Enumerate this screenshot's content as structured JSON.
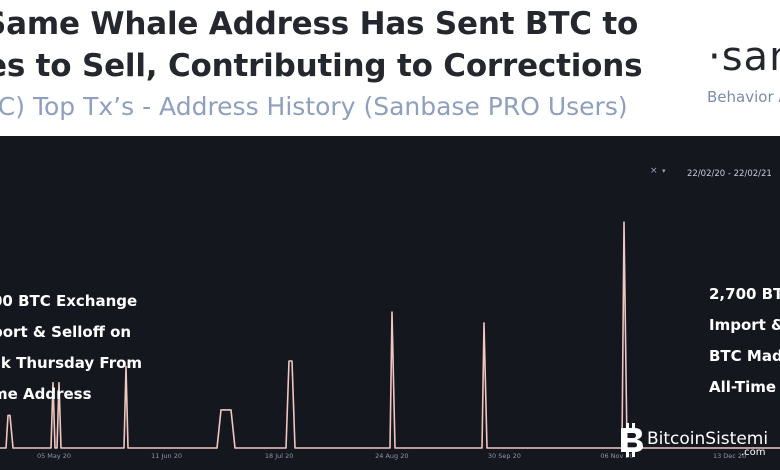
{
  "header": {
    "title_line_1": "Same Whale Address Has Sent BTC to",
    "title_line_2": "es to Sell, Contributing to Corrections",
    "subtitle": "TC) Top Tx’s - Address History (Sanbase PRO Users)",
    "logo_text": "·san",
    "logo_tagline": "Behavior A"
  },
  "controls": {
    "close_label": "×",
    "dropdown_label": "▾",
    "date_range": "22/02/20 - 22/02/21"
  },
  "annotations": {
    "left": [
      "00 BTC Exchange",
      "port & Selloff on",
      "ck Thursday From",
      "me Address"
    ],
    "right": [
      "2,700 BT",
      "Import &",
      "BTC Mad",
      "All-Time"
    ]
  },
  "watermark": {
    "name": "BitcoinSistemi",
    "suffix": ".com"
  },
  "chart_data": {
    "type": "line",
    "title": "",
    "xlabel": "",
    "ylabel": "",
    "x_tick_labels": [
      "05 May 20",
      "11 Jun 20",
      "18 Jul 20",
      "24 Aug 20",
      "30 Sep 20",
      "06 Nov 20",
      "13 Dec 20"
    ],
    "ylim": [
      0,
      100
    ],
    "grid": false,
    "legend": "none",
    "colors": {
      "line": "#f0c6c0",
      "background": "#15171f",
      "axis_text": "#8d95a6"
    },
    "series": [
      {
        "values": [
          [
            0,
            0
          ],
          [
            6,
            0
          ],
          [
            8,
            12
          ],
          [
            10,
            12
          ],
          [
            13,
            0
          ],
          [
            51,
            0
          ],
          [
            53,
            24
          ],
          [
            55,
            0
          ],
          [
            57,
            0
          ],
          [
            59,
            24
          ],
          [
            61,
            0
          ],
          [
            124,
            0
          ],
          [
            126,
            30
          ],
          [
            128,
            0
          ],
          [
            217,
            0
          ],
          [
            221,
            14
          ],
          [
            231,
            14
          ],
          [
            235,
            0
          ],
          [
            286,
            0
          ],
          [
            289,
            32
          ],
          [
            292,
            32
          ],
          [
            295,
            0
          ],
          [
            390,
            0
          ],
          [
            392,
            50
          ],
          [
            395,
            0
          ],
          [
            482,
            0
          ],
          [
            484,
            46
          ],
          [
            487,
            0
          ],
          [
            622,
            0
          ],
          [
            624,
            83
          ],
          [
            627,
            0
          ],
          [
            780,
            0
          ]
        ]
      }
    ]
  }
}
